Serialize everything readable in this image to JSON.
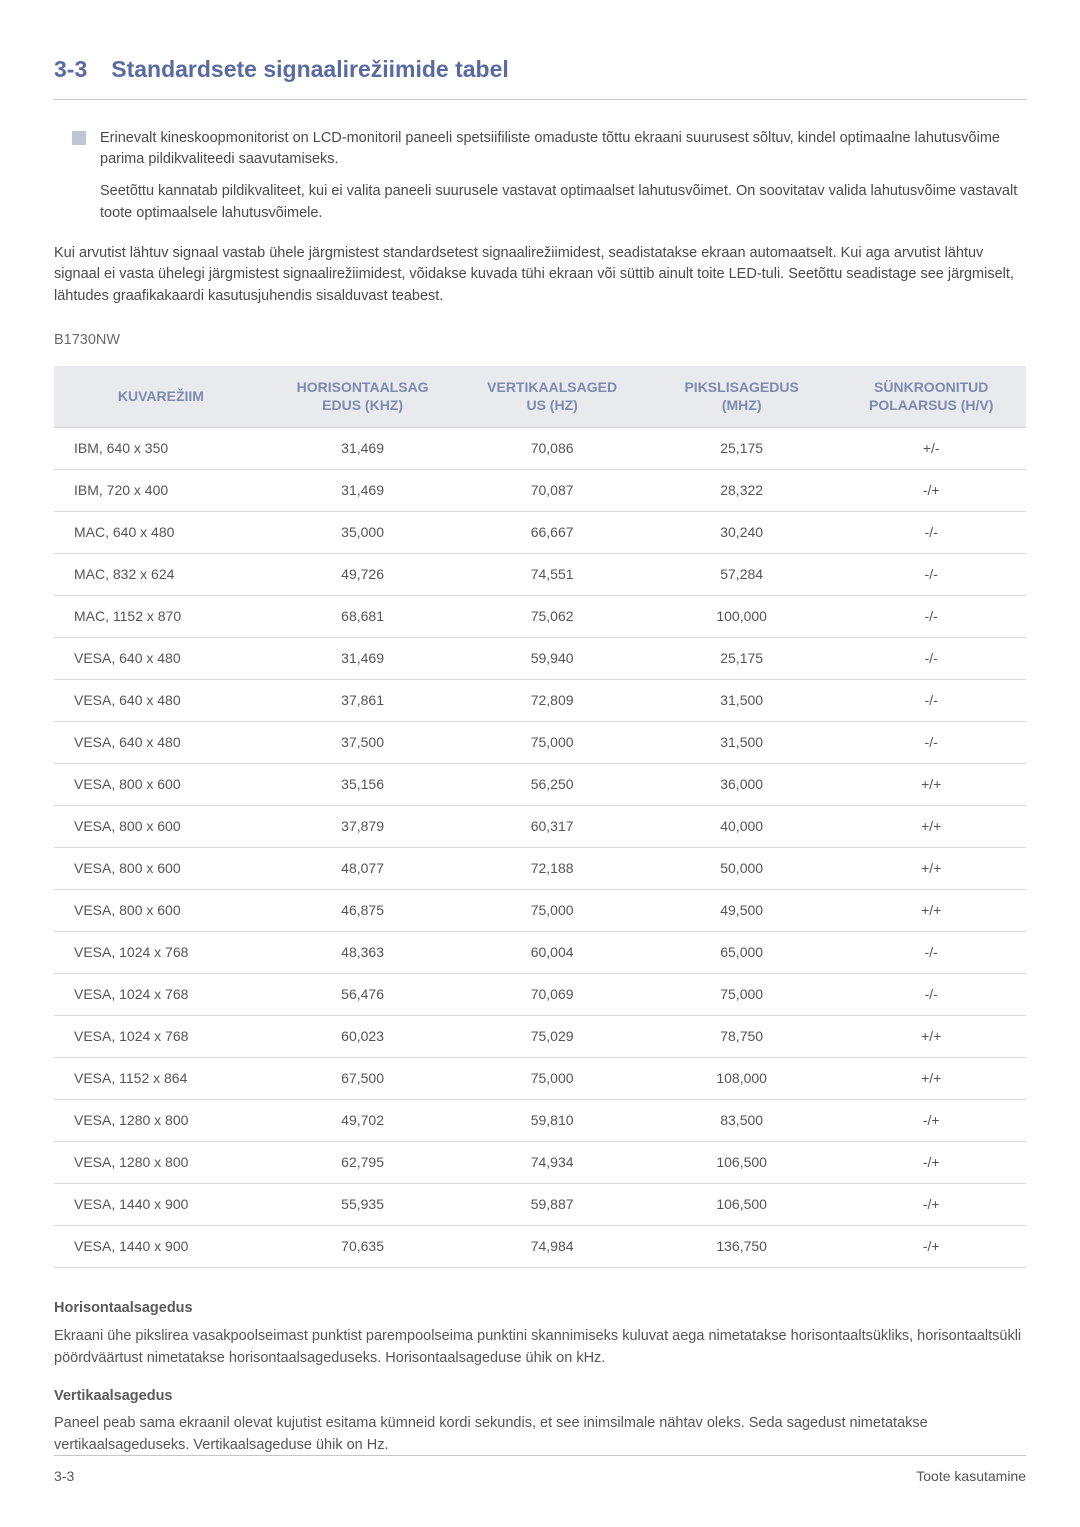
{
  "heading": {
    "num": "3-3",
    "title": "Standardsete signaalirežiimide tabel"
  },
  "notes": {
    "p1": "Erinevalt kineskoopmonitorist on LCD-monitoril paneeli spetsiifiliste omaduste tõttu ekraani suurusest sõltuv, kindel optimaalne lahutusvõime parima pildikvaliteedi saavutamiseks.",
    "p2": "Seetõttu kannatab pildikvaliteet, kui ei valita paneeli suurusele vastavat optimaalset lahutusvõimet. On soovitatav valida lahutusvõime vastavalt toote optimaalsele lahutusvõimele."
  },
  "intro": "Kui arvutist lähtuv signaal vastab ühele järgmistest standardsetest signaalirežiimidest, seadistatakse ekraan automaatselt. Kui aga arvutist lähtuv signaal ei vasta ühelegi järgmistest signaalirežiimidest, võidakse kuvada tühi ekraan või süttib ainult toite LED-tuli. Seetõttu seadistage see järgmiselt, lähtudes graafikakaardi kasutusjuhendis sisalduvast teabest.",
  "model": "B1730NW",
  "table": {
    "columns": [
      "KUVAREŽIIM",
      "HORISONTAALSAG\nEDUS (KHZ)",
      "VERTIKAALSAGED\nUS (HZ)",
      "PIKSLISAGEDUS\n(MHZ)",
      "SÜNKROONITUD\nPOLAARSUS (H/V)"
    ],
    "col_widths": [
      "22%",
      "19.5%",
      "19.5%",
      "19.5%",
      "19.5%"
    ],
    "header_bg": "#e9eaed",
    "header_color": "#7d8bb0",
    "row_border": "#d8d8d8",
    "rows": [
      [
        "IBM, 640 x 350",
        "31,469",
        "70,086",
        "25,175",
        "+/-"
      ],
      [
        "IBM, 720 x 400",
        "31,469",
        "70,087",
        "28,322",
        "-/+"
      ],
      [
        "MAC, 640 x 480",
        "35,000",
        "66,667",
        "30,240",
        "-/-"
      ],
      [
        "MAC, 832 x 624",
        "49,726",
        "74,551",
        "57,284",
        "-/-"
      ],
      [
        "MAC, 1152 x 870",
        "68,681",
        "75,062",
        "100,000",
        "-/-"
      ],
      [
        "VESA, 640 x 480",
        "31,469",
        "59,940",
        "25,175",
        "-/-"
      ],
      [
        "VESA, 640 x 480",
        "37,861",
        "72,809",
        "31,500",
        "-/-"
      ],
      [
        "VESA, 640 x 480",
        "37,500",
        "75,000",
        "31,500",
        "-/-"
      ],
      [
        "VESA, 800 x 600",
        "35,156",
        "56,250",
        "36,000",
        "+/+"
      ],
      [
        "VESA, 800 x 600",
        "37,879",
        "60,317",
        "40,000",
        "+/+"
      ],
      [
        "VESA, 800 x 600",
        "48,077",
        "72,188",
        "50,000",
        "+/+"
      ],
      [
        "VESA, 800 x 600",
        "46,875",
        "75,000",
        "49,500",
        "+/+"
      ],
      [
        "VESA, 1024 x 768",
        "48,363",
        "60,004",
        "65,000",
        "-/-"
      ],
      [
        "VESA, 1024 x 768",
        "56,476",
        "70,069",
        "75,000",
        "-/-"
      ],
      [
        "VESA, 1024 x 768",
        "60,023",
        "75,029",
        "78,750",
        "+/+"
      ],
      [
        "VESA, 1152 x 864",
        "67,500",
        "75,000",
        "108,000",
        "+/+"
      ],
      [
        "VESA, 1280 x 800",
        "49,702",
        "59,810",
        "83,500",
        "-/+"
      ],
      [
        "VESA, 1280 x 800",
        "62,795",
        "74,934",
        "106,500",
        "-/+"
      ],
      [
        "VESA, 1440 x 900",
        "55,935",
        "59,887",
        "106,500",
        "-/+"
      ],
      [
        "VESA, 1440 x 900",
        "70,635",
        "74,984",
        "136,750",
        "-/+"
      ]
    ]
  },
  "defs": {
    "h_title": "Horisontaalsagedus",
    "h_body": "Ekraani ühe pikslirea vasakpoolseimast punktist parempoolseima punktini skannimiseks kuluvat aega nimetatakse horisontaaltsükliks, horisontaaltsükli pöördväärtust nimetatakse horisontaalsageduseks. Horisontaalsageduse ühik on kHz.",
    "v_title": "Vertikaalsagedus",
    "v_body": "Paneel peab sama ekraanil olevat kujutist esitama kümneid kordi sekundis, et see inimsilmale nähtav oleks. Seda sagedust nimetatakse vertikaalsageduseks. Vertikaalsageduse ühik on Hz."
  },
  "footer": {
    "left": "3-3",
    "right": "Toote kasutamine"
  }
}
